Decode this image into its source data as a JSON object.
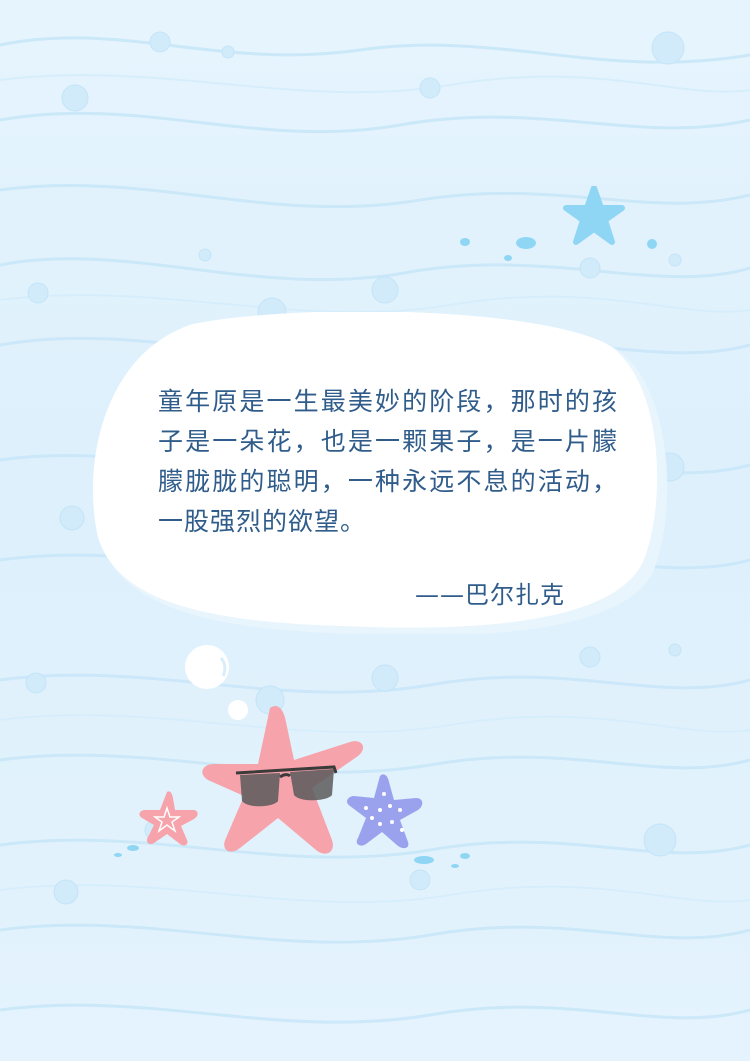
{
  "quote": {
    "text": "童年原是一生最美妙的阶段，那时的孩子是一朵花，也是一颗果子，是一片朦朦胧胧的聪明，一种永远不息的活动，一股强烈的欲望。",
    "author": "——巴尔扎克"
  },
  "colors": {
    "background": "#e2f2fc",
    "text": "#2f5c8a",
    "bubble": "#ffffff",
    "starfish_pink": "#f7a3ab",
    "starfish_purple": "#9aa2ee",
    "starfish_blue": "#8fd6f5"
  },
  "icons": [
    "blue-starfish-icon",
    "pink-starfish-icon",
    "purple-starfish-icon",
    "small-pink-starfish-icon",
    "sunglasses-icon",
    "bubble-icon"
  ]
}
